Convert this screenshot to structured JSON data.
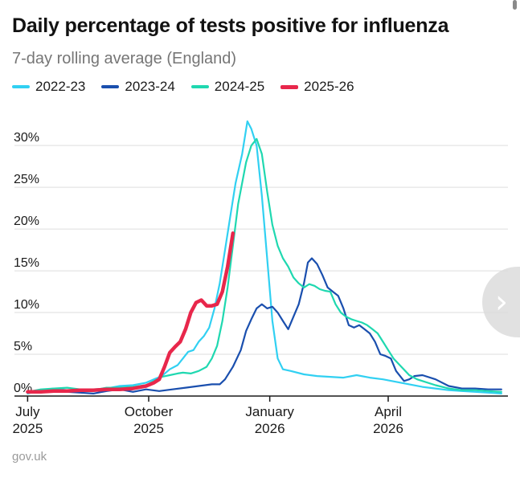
{
  "chart_data": {
    "type": "line",
    "title": "Daily percentage of tests positive for influenza",
    "subtitle": "7-day rolling average (England)",
    "source": "gov.uk",
    "y_ticks": [
      {
        "value": 0,
        "label": "0%"
      },
      {
        "value": 5,
        "label": "5%"
      },
      {
        "value": 10,
        "label": "10%"
      },
      {
        "value": 15,
        "label": "15%"
      },
      {
        "value": 20,
        "label": "20%"
      },
      {
        "value": 25,
        "label": "25%"
      },
      {
        "value": 30,
        "label": "30%"
      }
    ],
    "ylim": [
      0,
      33
    ],
    "x_ticks": [
      {
        "value": 0,
        "label_top": "July",
        "label_bottom": "2025"
      },
      {
        "value": 92,
        "label_top": "October",
        "label_bottom": "2025"
      },
      {
        "value": 184,
        "label_top": "January",
        "label_bottom": "2026"
      },
      {
        "value": 274,
        "label_top": "April",
        "label_bottom": "2026"
      }
    ],
    "xlim": [
      -10,
      365
    ],
    "grid": true,
    "legend_position": "top-left",
    "series": [
      {
        "name": "2022-23",
        "color": "#31d0f2",
        "width": 2.2,
        "points": [
          [
            0,
            0.3
          ],
          [
            10,
            0.7
          ],
          [
            20,
            0.9
          ],
          [
            30,
            0.7
          ],
          [
            40,
            0.5
          ],
          [
            50,
            0.8
          ],
          [
            60,
            0.9
          ],
          [
            70,
            1.2
          ],
          [
            80,
            1.3
          ],
          [
            90,
            1.6
          ],
          [
            96,
            2.0
          ],
          [
            102,
            2.4
          ],
          [
            108,
            3.2
          ],
          [
            114,
            3.7
          ],
          [
            118,
            4.5
          ],
          [
            122,
            5.3
          ],
          [
            126,
            5.5
          ],
          [
            130,
            6.5
          ],
          [
            134,
            7.2
          ],
          [
            138,
            8.2
          ],
          [
            142,
            10.5
          ],
          [
            146,
            13.5
          ],
          [
            150,
            17.5
          ],
          [
            154,
            21.5
          ],
          [
            158,
            25.5
          ],
          [
            163,
            29.0
          ],
          [
            167,
            32.9
          ],
          [
            170,
            32.0
          ],
          [
            174,
            30.0
          ],
          [
            178,
            24.0
          ],
          [
            182,
            16.5
          ],
          [
            186,
            9.0
          ],
          [
            190,
            4.5
          ],
          [
            194,
            3.2
          ],
          [
            200,
            3.0
          ],
          [
            210,
            2.6
          ],
          [
            220,
            2.4
          ],
          [
            230,
            2.3
          ],
          [
            240,
            2.2
          ],
          [
            250,
            2.5
          ],
          [
            260,
            2.2
          ],
          [
            270,
            2.0
          ],
          [
            280,
            1.7
          ],
          [
            290,
            1.4
          ],
          [
            300,
            1.1
          ],
          [
            310,
            0.9
          ],
          [
            320,
            0.7
          ],
          [
            330,
            0.6
          ],
          [
            340,
            0.5
          ],
          [
            350,
            0.4
          ],
          [
            360,
            0.3
          ]
        ]
      },
      {
        "name": "2023-24",
        "color": "#1a4fae",
        "width": 2.2,
        "points": [
          [
            0,
            0.6
          ],
          [
            10,
            0.5
          ],
          [
            20,
            0.6
          ],
          [
            30,
            0.5
          ],
          [
            40,
            0.4
          ],
          [
            50,
            0.3
          ],
          [
            60,
            0.6
          ],
          [
            70,
            0.8
          ],
          [
            80,
            0.5
          ],
          [
            90,
            0.8
          ],
          [
            100,
            0.6
          ],
          [
            110,
            0.8
          ],
          [
            120,
            1.0
          ],
          [
            130,
            1.2
          ],
          [
            140,
            1.4
          ],
          [
            146,
            1.4
          ],
          [
            150,
            2.0
          ],
          [
            156,
            3.5
          ],
          [
            162,
            5.5
          ],
          [
            166,
            7.8
          ],
          [
            170,
            9.2
          ],
          [
            174,
            10.5
          ],
          [
            178,
            11.0
          ],
          [
            182,
            10.5
          ],
          [
            186,
            10.7
          ],
          [
            190,
            10.0
          ],
          [
            194,
            9.0
          ],
          [
            198,
            8.0
          ],
          [
            202,
            9.5
          ],
          [
            206,
            11.0
          ],
          [
            210,
            13.5
          ],
          [
            213,
            16.0
          ],
          [
            216,
            16.5
          ],
          [
            220,
            15.8
          ],
          [
            224,
            14.5
          ],
          [
            228,
            13.0
          ],
          [
            232,
            12.5
          ],
          [
            236,
            12.0
          ],
          [
            240,
            10.5
          ],
          [
            244,
            8.5
          ],
          [
            248,
            8.2
          ],
          [
            252,
            8.5
          ],
          [
            256,
            8.0
          ],
          [
            260,
            7.5
          ],
          [
            264,
            6.5
          ],
          [
            268,
            5.0
          ],
          [
            272,
            4.8
          ],
          [
            276,
            4.5
          ],
          [
            280,
            3.0
          ],
          [
            286,
            1.8
          ],
          [
            290,
            2.0
          ],
          [
            294,
            2.4
          ],
          [
            300,
            2.5
          ],
          [
            310,
            2.0
          ],
          [
            320,
            1.2
          ],
          [
            330,
            0.9
          ],
          [
            340,
            0.9
          ],
          [
            350,
            0.8
          ],
          [
            360,
            0.8
          ]
        ]
      },
      {
        "name": "2024-25",
        "color": "#1fd8b0",
        "width": 2.2,
        "points": [
          [
            0,
            0.5
          ],
          [
            10,
            0.8
          ],
          [
            20,
            0.9
          ],
          [
            30,
            1.0
          ],
          [
            40,
            0.8
          ],
          [
            50,
            0.7
          ],
          [
            60,
            1.0
          ],
          [
            70,
            1.0
          ],
          [
            80,
            1.1
          ],
          [
            90,
            1.3
          ],
          [
            96,
            1.8
          ],
          [
            102,
            2.3
          ],
          [
            108,
            2.5
          ],
          [
            114,
            2.7
          ],
          [
            118,
            2.8
          ],
          [
            124,
            2.7
          ],
          [
            130,
            3.0
          ],
          [
            136,
            3.5
          ],
          [
            140,
            4.5
          ],
          [
            144,
            6.0
          ],
          [
            148,
            9.0
          ],
          [
            152,
            13.0
          ],
          [
            156,
            18.0
          ],
          [
            160,
            23.0
          ],
          [
            166,
            28.0
          ],
          [
            170,
            30.0
          ],
          [
            174,
            30.8
          ],
          [
            178,
            29.0
          ],
          [
            182,
            24.5
          ],
          [
            186,
            20.5
          ],
          [
            190,
            18.0
          ],
          [
            194,
            16.5
          ],
          [
            198,
            15.5
          ],
          [
            202,
            14.2
          ],
          [
            206,
            13.5
          ],
          [
            210,
            13.0
          ],
          [
            214,
            13.4
          ],
          [
            218,
            13.2
          ],
          [
            222,
            12.8
          ],
          [
            226,
            12.6
          ],
          [
            230,
            12.5
          ],
          [
            234,
            11.0
          ],
          [
            238,
            10.0
          ],
          [
            242,
            9.5
          ],
          [
            246,
            9.2
          ],
          [
            250,
            9.0
          ],
          [
            254,
            8.8
          ],
          [
            258,
            8.5
          ],
          [
            262,
            8.0
          ],
          [
            266,
            7.5
          ],
          [
            270,
            6.5
          ],
          [
            274,
            5.5
          ],
          [
            278,
            4.5
          ],
          [
            284,
            3.5
          ],
          [
            290,
            2.5
          ],
          [
            296,
            2.0
          ],
          [
            300,
            1.8
          ],
          [
            310,
            1.3
          ],
          [
            320,
            0.9
          ],
          [
            330,
            0.7
          ],
          [
            340,
            0.7
          ],
          [
            350,
            0.6
          ],
          [
            360,
            0.5
          ]
        ]
      },
      {
        "name": "2025-26",
        "color": "#e8274b",
        "width": 4.5,
        "points": [
          [
            0,
            0.5
          ],
          [
            10,
            0.5
          ],
          [
            20,
            0.6
          ],
          [
            30,
            0.6
          ],
          [
            40,
            0.7
          ],
          [
            50,
            0.7
          ],
          [
            60,
            0.8
          ],
          [
            70,
            0.8
          ],
          [
            80,
            0.9
          ],
          [
            90,
            1.2
          ],
          [
            96,
            1.6
          ],
          [
            100,
            2.0
          ],
          [
            104,
            3.5
          ],
          [
            108,
            5.2
          ],
          [
            112,
            5.9
          ],
          [
            116,
            6.5
          ],
          [
            120,
            8.0
          ],
          [
            124,
            10.0
          ],
          [
            128,
            11.2
          ],
          [
            132,
            11.5
          ],
          [
            136,
            10.8
          ],
          [
            140,
            10.8
          ],
          [
            144,
            11.0
          ],
          [
            148,
            12.5
          ],
          [
            152,
            15.5
          ],
          [
            156,
            19.5
          ]
        ]
      }
    ]
  },
  "navigation": {
    "next_arrow": "›"
  }
}
